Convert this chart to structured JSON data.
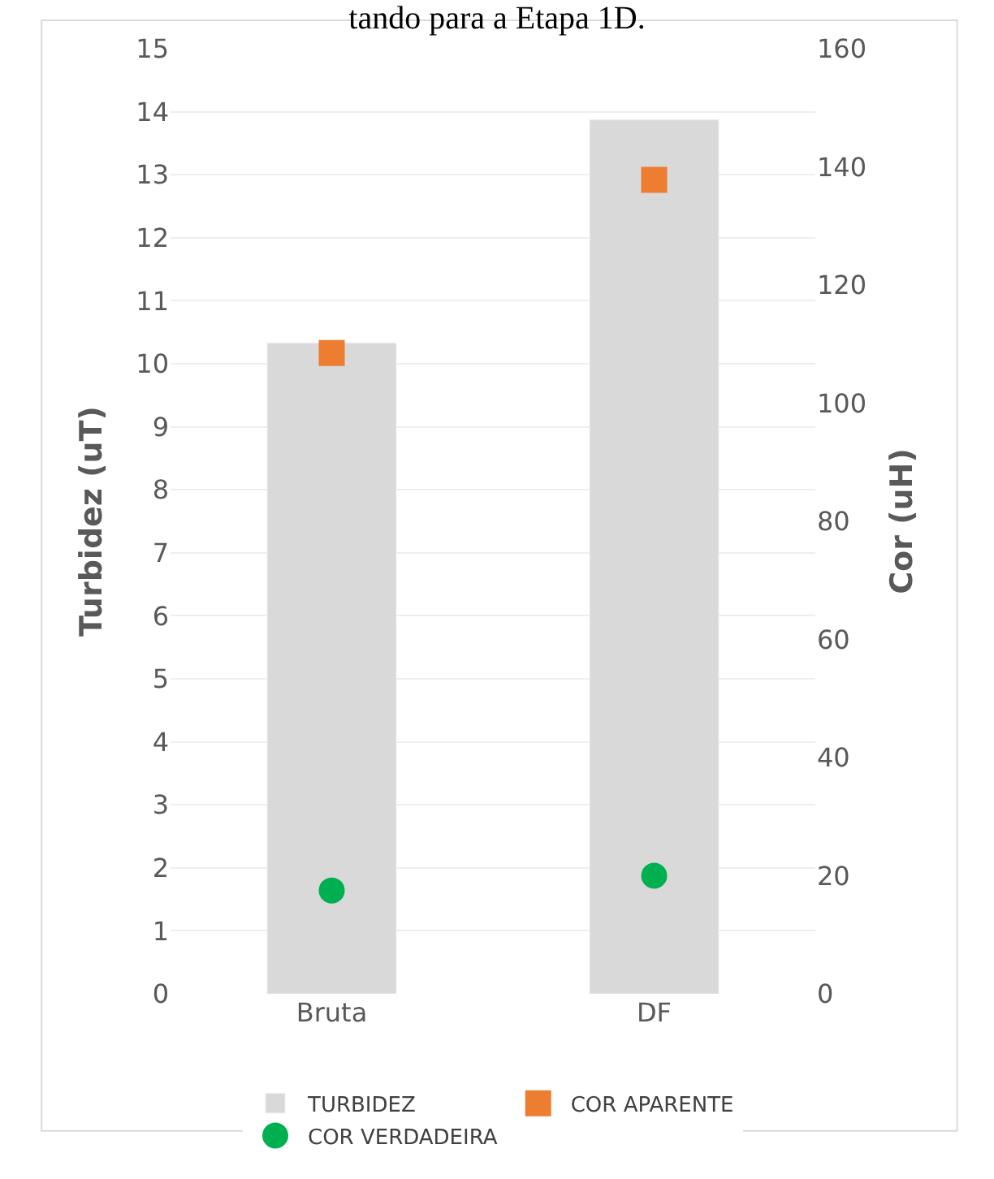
{
  "chart_data": {
    "type": "bar",
    "title": "tando para a Etapa 1D.",
    "categories": [
      "Bruta",
      "DF"
    ],
    "ylabel": "Turbidez (uT)",
    "y2label": "Cor (uH)",
    "ylim": [
      0,
      15
    ],
    "yticks": [
      0,
      1,
      2,
      3,
      4,
      5,
      6,
      7,
      8,
      9,
      10,
      11,
      12,
      13,
      14,
      15
    ],
    "y2lim": [
      0,
      160
    ],
    "y2ticks": [
      0,
      20,
      40,
      60,
      80,
      100,
      120,
      140,
      160
    ],
    "grid": "y",
    "legend": "bottom",
    "series": [
      {
        "name": "TURBIDEZ",
        "color": "#d9d9d9",
        "values": [
          10.33,
          13.87
        ]
      },
      {
        "name": "COR APARENTE",
        "type": "scatter",
        "marker": "square",
        "axis": "y2",
        "color": "#ed7d31",
        "values": [
          108.5,
          137.8
        ]
      },
      {
        "name": "COR VERDADEIRA",
        "type": "scatter",
        "marker": "circle",
        "axis": "y2",
        "color": "#00b050",
        "values": [
          17.5,
          20.0
        ]
      }
    ]
  }
}
